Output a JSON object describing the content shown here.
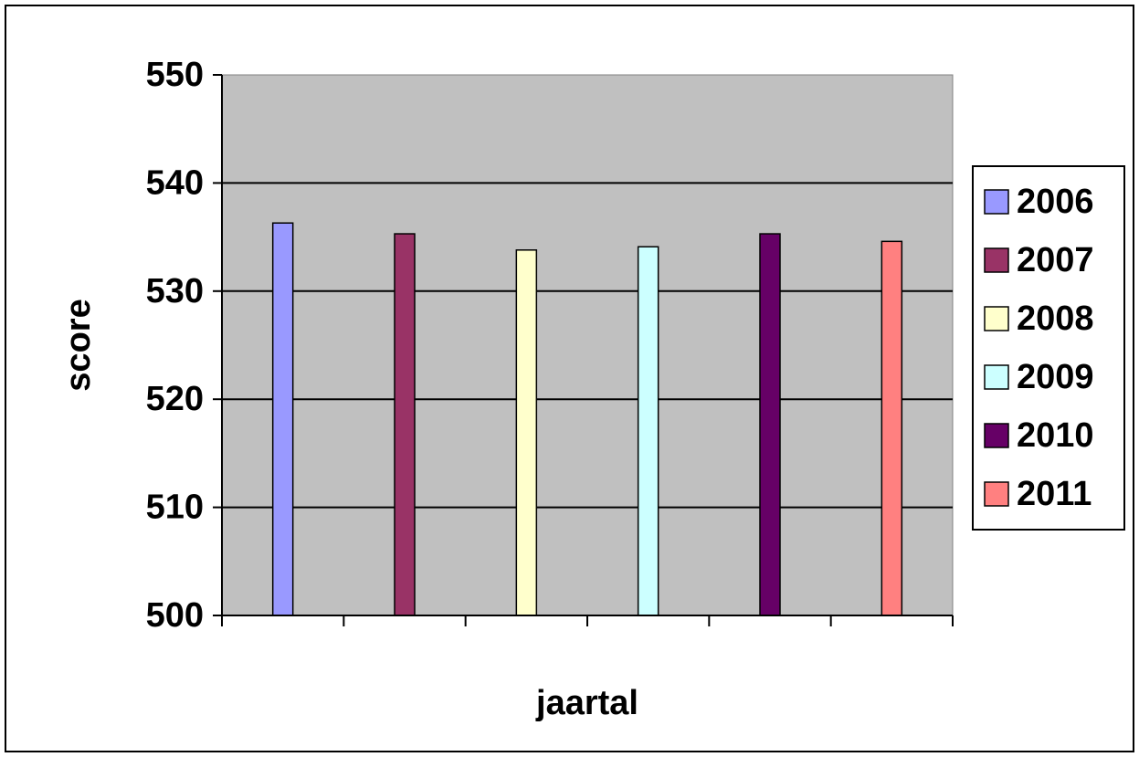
{
  "chart_data": {
    "type": "bar",
    "title": "",
    "xlabel": "jaartal",
    "ylabel": "score",
    "ylim": [
      500,
      550
    ],
    "yticks": [
      500,
      510,
      520,
      530,
      540,
      550
    ],
    "grid": true,
    "legend_position": "right",
    "plot_background": "#c0c0c0",
    "series": [
      {
        "name": "2006",
        "value": 536.3,
        "color": "#9999ff"
      },
      {
        "name": "2007",
        "value": 535.3,
        "color": "#993366"
      },
      {
        "name": "2008",
        "value": 533.8,
        "color": "#ffffcc"
      },
      {
        "name": "2009",
        "value": 534.1,
        "color": "#ccffff"
      },
      {
        "name": "2010",
        "value": 535.3,
        "color": "#660066"
      },
      {
        "name": "2011",
        "value": 534.6,
        "color": "#ff8080"
      }
    ]
  }
}
